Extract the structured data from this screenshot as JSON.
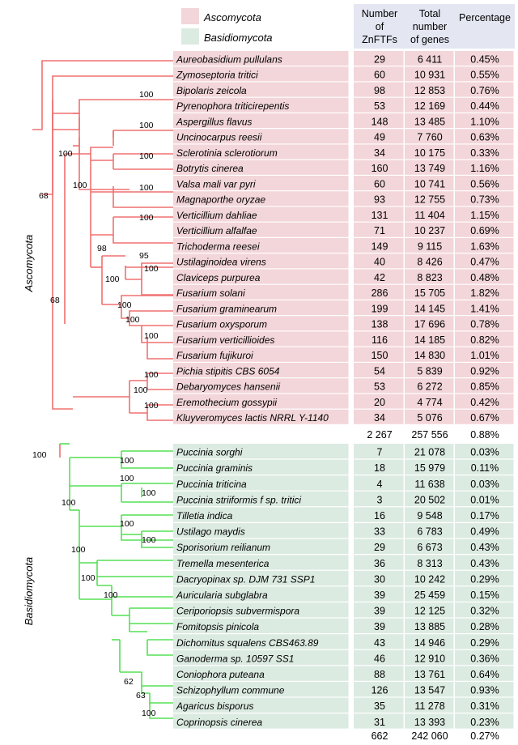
{
  "legend": [
    {
      "label": "Ascomycota",
      "color": "#f3d6d9"
    },
    {
      "label": "Basidiomycota",
      "color": "#dcebe2"
    }
  ],
  "headers": {
    "zn": [
      "Number",
      "of",
      "ZnFTFs"
    ],
    "total": [
      "Total",
      "number",
      "of genes"
    ],
    "pct": "Percentage"
  },
  "colors": {
    "asco_bg": "#f3d6d9",
    "basi_bg": "#dcebe2",
    "header_bg": "#e4e6f2",
    "asco_branch": "#f07070",
    "basi_branch": "#55e055"
  },
  "clades": {
    "asco": "Ascomycota",
    "basi": "Basidiomycota"
  },
  "ascomycota": [
    {
      "species": "Aureobasidium pullulans",
      "zn": "29",
      "total": "6 411",
      "pct": "0.45%"
    },
    {
      "species": "Zymoseptoria tritici",
      "zn": "60",
      "total": "10 931",
      "pct": "0.55%"
    },
    {
      "species": "Bipolaris zeicola",
      "zn": "98",
      "total": "12 853",
      "pct": "0.76%"
    },
    {
      "species": "Pyrenophora triticirepentis",
      "zn": "53",
      "total": "12 169",
      "pct": "0.44%"
    },
    {
      "species": "Aspergillus flavus",
      "zn": "148",
      "total": "13 485",
      "pct": "1.10%"
    },
    {
      "species": "Uncinocarpus reesii",
      "zn": "49",
      "total": "7 760",
      "pct": "0.63%"
    },
    {
      "species": "Sclerotinia sclerotiorum",
      "zn": "34",
      "total": "10 175",
      "pct": "0.33%"
    },
    {
      "species": "Botrytis cinerea",
      "zn": "160",
      "total": "13 749",
      "pct": "1.16%"
    },
    {
      "species": "Valsa mali var pyri",
      "zn": "60",
      "total": "10 741",
      "pct": "0.56%"
    },
    {
      "species": "Magnaporthe oryzae",
      "zn": "93",
      "total": "12 755",
      "pct": "0.73%"
    },
    {
      "species": "Verticillium dahliae",
      "zn": "131",
      "total": "11 404",
      "pct": "1.15%"
    },
    {
      "species": "Verticillium alfalfae",
      "zn": "71",
      "total": "10 237",
      "pct": "0.69%"
    },
    {
      "species": "Trichoderma reesei",
      "zn": "149",
      "total": "9 115",
      "pct": "1.63%"
    },
    {
      "species": "Ustilaginoidea virens",
      "zn": "40",
      "total": "8 426",
      "pct": "0.47%"
    },
    {
      "species": "Claviceps purpurea",
      "zn": "42",
      "total": "8 823",
      "pct": "0.48%"
    },
    {
      "species": "Fusarium solani",
      "zn": "286",
      "total": "15 705",
      "pct": "1.82%"
    },
    {
      "species": "Fusarium graminearum",
      "zn": "199",
      "total": "14 145",
      "pct": "1.41%"
    },
    {
      "species": "Fusarium oxysporum",
      "zn": "138",
      "total": "17 696",
      "pct": "0.78%"
    },
    {
      "species": "Fusarium verticillioides",
      "zn": "116",
      "total": "14 185",
      "pct": "0.82%"
    },
    {
      "species": "Fusarium fujikuroi",
      "zn": "150",
      "total": "14 830",
      "pct": "1.01%"
    },
    {
      "species": "Pichia stipitis CBS 6054",
      "zn": "54",
      "total": "5 839",
      "pct": "0.92%"
    },
    {
      "species": "Debaryomyces hansenii",
      "zn": "53",
      "total": "6 272",
      "pct": "0.85%"
    },
    {
      "species": "Eremothecium gossypii",
      "zn": "20",
      "total": "4 774",
      "pct": "0.42%"
    },
    {
      "species": "Kluyveromyces lactis NRRL Y-1140",
      "zn": "34",
      "total": "5 076",
      "pct": "0.67%"
    }
  ],
  "asco_total": {
    "zn": "2 267",
    "total": "257 556",
    "pct": "0.88%"
  },
  "basidiomycota": [
    {
      "species": "Puccinia sorghi",
      "zn": "7",
      "total": "21 078",
      "pct": "0.03%"
    },
    {
      "species": "Puccinia graminis",
      "zn": "18",
      "total": "15 979",
      "pct": "0.11%"
    },
    {
      "species": "Puccinia triticina",
      "zn": "4",
      "total": "11 638",
      "pct": "0.03%"
    },
    {
      "species": "Puccinia striiformis f sp. tritici",
      "zn": "3",
      "total": "20 502",
      "pct": "0.01%"
    },
    {
      "species": "Tilletia indica",
      "zn": "16",
      "total": "9 548",
      "pct": "0.17%"
    },
    {
      "species": "Ustilago maydis",
      "zn": "33",
      "total": "6 783",
      "pct": "0.49%"
    },
    {
      "species": "Sporisorium reilianum",
      "zn": "29",
      "total": "6 673",
      "pct": "0.43%"
    },
    {
      "species": "Tremella mesenterica",
      "zn": "36",
      "total": "8 313",
      "pct": "0.43%"
    },
    {
      "species": "Dacryopinax sp. DJM 731 SSP1",
      "zn": "30",
      "total": "10 242",
      "pct": "0.29%"
    },
    {
      "species": "Auricularia subglabra",
      "zn": "39",
      "total": "25 459",
      "pct": "0.15%"
    },
    {
      "species": "Ceriporiopsis subvermispora",
      "zn": "39",
      "total": "12 125",
      "pct": "0.32%"
    },
    {
      "species": "Fomitopsis pinicola",
      "zn": "39",
      "total": "13 885",
      "pct": "0.28%"
    },
    {
      "species": "Dichomitus squalens CBS463.89",
      "zn": "43",
      "total": "14 946",
      "pct": "0.29%"
    },
    {
      "species": "Ganoderma sp. 10597 SS1",
      "zn": "46",
      "total": "12 910",
      "pct": "0.36%"
    },
    {
      "species": "Coniophora puteana",
      "zn": "88",
      "total": "13 761",
      "pct": "0.64%"
    },
    {
      "species": "Schizophyllum commune",
      "zn": "126",
      "total": "13 547",
      "pct": "0.93%"
    },
    {
      "species": "Agaricus bisporus",
      "zn": "35",
      "total": "11 278",
      "pct": "0.31%"
    },
    {
      "species": "Coprinopsis cinerea",
      "zn": "31",
      "total": "13 393",
      "pct": "0.23%"
    }
  ],
  "basi_total": {
    "zn": "662",
    "total": "242 060",
    "pct": "0.27%"
  },
  "bootstrap": [
    "100",
    "100",
    "100",
    "100",
    "68",
    "100",
    "100",
    "100",
    "98",
    "95",
    "100",
    "100",
    "100",
    "100",
    "68",
    "100",
    "100",
    "100",
    "100",
    "100",
    "100",
    "100",
    "100",
    "100",
    "100",
    "100",
    "100",
    "100",
    "100",
    "62",
    "63",
    "100"
  ]
}
